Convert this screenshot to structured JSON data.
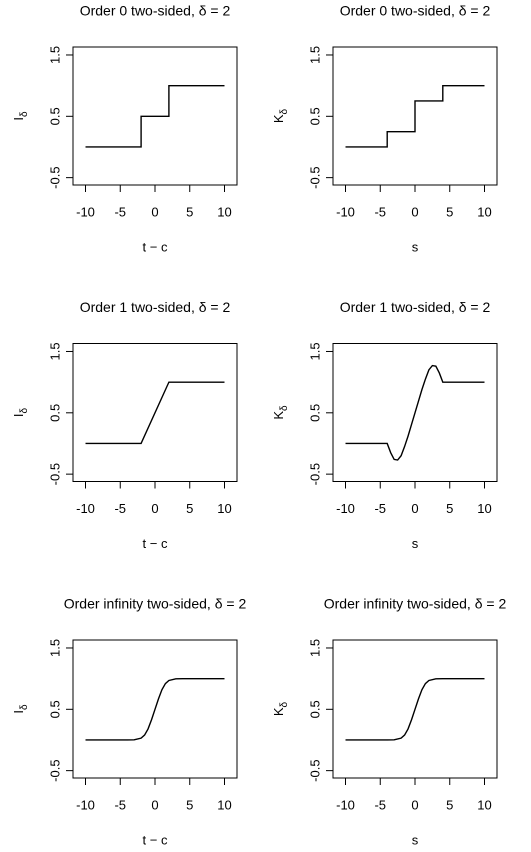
{
  "chart_data": [
    {
      "type": "line",
      "title": "Order 0 two-sided, δ = 2",
      "xlabel": "t − c",
      "ylabel": "I",
      "ylabel_subscript": "δ",
      "x": [
        -10,
        -2,
        -2,
        2,
        2,
        10
      ],
      "values": [
        0,
        0,
        0.5,
        0.5,
        1,
        1
      ],
      "color": "#000000",
      "xlim": [
        -11.8,
        11.8
      ],
      "ylim": [
        -0.62,
        1.63
      ],
      "xticks": [
        -10,
        -5,
        0,
        5,
        10
      ],
      "yticks": [
        -0.5,
        0.5,
        1.5
      ]
    },
    {
      "type": "line",
      "title": "Order 0 two-sided, δ = 2",
      "xlabel": "s",
      "ylabel": "K",
      "ylabel_subscript": "δ",
      "x": [
        -10,
        -4,
        -4,
        0,
        0,
        4,
        4,
        10
      ],
      "values": [
        0,
        0,
        0.25,
        0.25,
        0.75,
        0.75,
        1,
        1
      ],
      "color": "#000000",
      "xlim": [
        -11.8,
        11.8
      ],
      "ylim": [
        -0.62,
        1.63
      ],
      "xticks": [
        -10,
        -5,
        0,
        5,
        10
      ],
      "yticks": [
        -0.5,
        0.5,
        1.5
      ]
    },
    {
      "type": "line",
      "title": "Order 1 two-sided, δ = 2",
      "xlabel": "t − c",
      "ylabel": "I",
      "ylabel_subscript": "δ",
      "x": [
        -10,
        -2,
        2,
        10
      ],
      "values": [
        0,
        0,
        1,
        1
      ],
      "color": "#000000",
      "xlim": [
        -11.8,
        11.8
      ],
      "ylim": [
        -0.62,
        1.63
      ],
      "xticks": [
        -10,
        -5,
        0,
        5,
        10
      ],
      "yticks": [
        -0.5,
        0.5,
        1.5
      ]
    },
    {
      "type": "line",
      "title": "Order 1 two-sided, δ = 2",
      "xlabel": "s",
      "ylabel": "K",
      "ylabel_subscript": "δ",
      "x": [
        -10,
        -4,
        -3.5,
        -3,
        -2.5,
        -2,
        -1.5,
        -1,
        -0.5,
        0,
        0.5,
        1,
        1.5,
        2,
        2.5,
        3,
        3.5,
        4,
        10
      ],
      "values": [
        0,
        0,
        -0.15,
        -0.26,
        -0.27,
        -0.2,
        -0.05,
        0.12,
        0.31,
        0.5,
        0.69,
        0.88,
        1.05,
        1.2,
        1.27,
        1.26,
        1.15,
        1,
        1
      ],
      "color": "#000000",
      "xlim": [
        -11.8,
        11.8
      ],
      "ylim": [
        -0.62,
        1.63
      ],
      "xticks": [
        -10,
        -5,
        0,
        5,
        10
      ],
      "yticks": [
        -0.5,
        0.5,
        1.5
      ]
    },
    {
      "type": "line",
      "title": "Order infinity two-sided, δ = 2",
      "xlabel": "t − c",
      "ylabel": "I",
      "ylabel_subscript": "δ",
      "x": [
        -10,
        -4,
        -3,
        -2,
        -1.5,
        -1,
        -0.5,
        0,
        0.5,
        1,
        1.5,
        2,
        3,
        4,
        10
      ],
      "values": [
        0,
        0,
        0.003,
        0.03,
        0.08,
        0.18,
        0.33,
        0.5,
        0.67,
        0.82,
        0.92,
        0.97,
        0.997,
        1,
        1
      ],
      "color": "#000000",
      "xlim": [
        -11.8,
        11.8
      ],
      "ylim": [
        -0.62,
        1.63
      ],
      "xticks": [
        -10,
        -5,
        0,
        5,
        10
      ],
      "yticks": [
        -0.5,
        0.5,
        1.5
      ]
    },
    {
      "type": "line",
      "title": "Order infinity two-sided, δ = 2",
      "xlabel": "s",
      "ylabel": "K",
      "ylabel_subscript": "δ",
      "x": [
        -10,
        -4,
        -3,
        -2,
        -1.5,
        -1,
        -0.5,
        0,
        0.5,
        1,
        1.5,
        2,
        3,
        4,
        10
      ],
      "values": [
        0,
        0,
        0.003,
        0.03,
        0.08,
        0.18,
        0.33,
        0.5,
        0.67,
        0.82,
        0.92,
        0.97,
        0.997,
        1,
        1
      ],
      "color": "#000000",
      "xlim": [
        -11.8,
        11.8
      ],
      "ylim": [
        -0.62,
        1.63
      ],
      "xticks": [
        -10,
        -5,
        0,
        5,
        10
      ],
      "yticks": [
        -0.5,
        0.5,
        1.5
      ]
    }
  ]
}
